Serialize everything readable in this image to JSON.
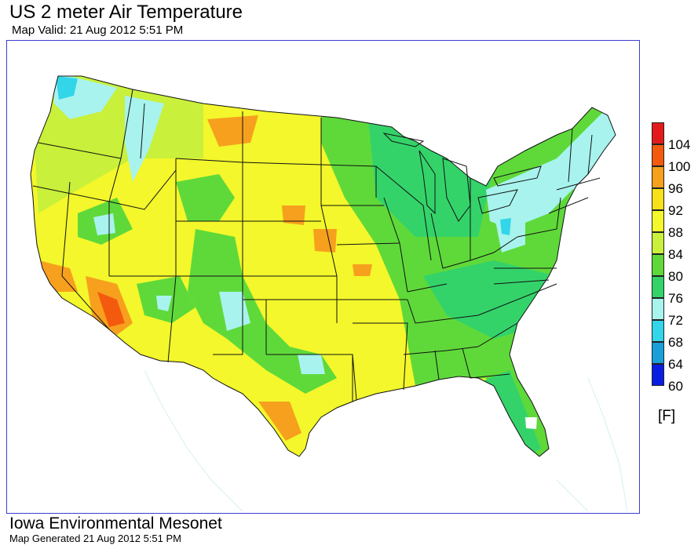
{
  "header": {
    "title": "US 2 meter Air Temperature",
    "valid": "Map Valid: 21 Aug 2012 5:51 PM"
  },
  "legend": {
    "unit": "[F]",
    "items": [
      {
        "label": "104",
        "color": "#e31a1c"
      },
      {
        "label": "100",
        "color": "#f45a0e"
      },
      {
        "label": "96",
        "color": "#f7a01e"
      },
      {
        "label": "92",
        "color": "#f7e11a"
      },
      {
        "label": "88",
        "color": "#f3f72b"
      },
      {
        "label": "84",
        "color": "#c9f03a"
      },
      {
        "label": "80",
        "color": "#5fd93a"
      },
      {
        "label": "76",
        "color": "#34d36a"
      },
      {
        "label": "72",
        "color": "#a8f3ee"
      },
      {
        "label": "68",
        "color": "#32d6e8"
      },
      {
        "label": "64",
        "color": "#1a9fd8"
      },
      {
        "label": "60",
        "color": "#0a1ee0"
      }
    ]
  },
  "footer": {
    "org": "Iowa Environmental Mesonet",
    "generated": "Map Generated 21 Aug 2012 5:51 PM"
  }
}
